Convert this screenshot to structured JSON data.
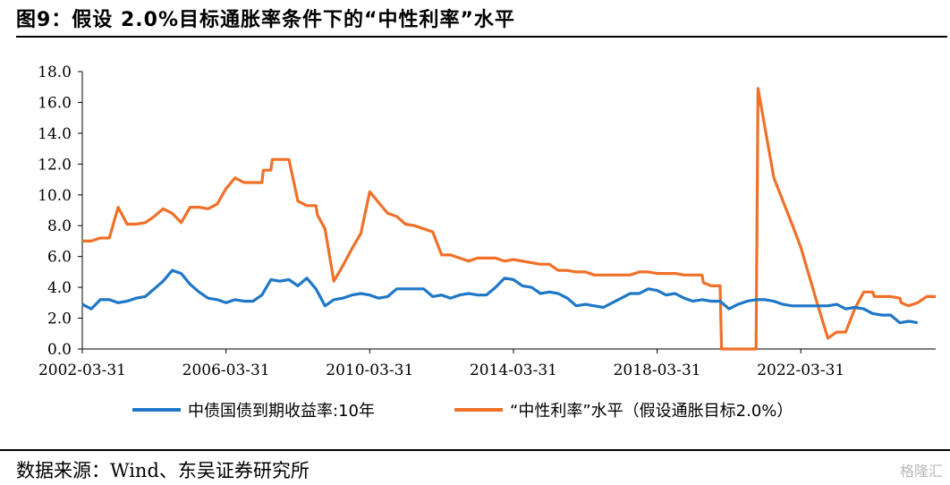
{
  "header": {
    "title": "图9：假设 2.0%目标通胀率条件下的“中性利率”水平"
  },
  "footer": {
    "source": "数据来源：Wind、东吴证券研究所",
    "watermark": "格隆汇"
  },
  "colors": {
    "series1": "#1f77c8",
    "series2": "#f07028"
  },
  "chart_data": {
    "type": "line",
    "title": "",
    "xlabel": "",
    "ylabel": "",
    "ylim": [
      0,
      18
    ],
    "xlim": [
      "2002-03-31",
      "2025-12-31"
    ],
    "grid": false,
    "legend_position": "bottom",
    "yticks": [
      "18.0",
      "16.0",
      "14.0",
      "12.0",
      "10.0",
      "8.0",
      "6.0",
      "4.0",
      "2.0",
      "0.0"
    ],
    "xticks": [
      "2002-03-31",
      "2006-03-31",
      "2010-03-31",
      "2014-03-31",
      "2018-03-31",
      "2022-03-31"
    ],
    "series": [
      {
        "name": "中债国债到期收益率:10年",
        "points": [
          [
            "2002-03-31",
            2.9
          ],
          [
            "2002-06-30",
            2.6
          ],
          [
            "2002-09-30",
            3.2
          ],
          [
            "2002-12-31",
            3.2
          ],
          [
            "2003-03-31",
            3.0
          ],
          [
            "2003-06-30",
            3.1
          ],
          [
            "2003-09-30",
            3.3
          ],
          [
            "2003-12-31",
            3.4
          ],
          [
            "2004-03-31",
            3.9
          ],
          [
            "2004-06-30",
            4.4
          ],
          [
            "2004-09-30",
            5.1
          ],
          [
            "2004-12-31",
            4.9
          ],
          [
            "2005-03-31",
            4.2
          ],
          [
            "2005-06-30",
            3.7
          ],
          [
            "2005-09-30",
            3.3
          ],
          [
            "2005-12-31",
            3.2
          ],
          [
            "2006-03-31",
            3.0
          ],
          [
            "2006-06-30",
            3.2
          ],
          [
            "2006-09-30",
            3.1
          ],
          [
            "2006-12-31",
            3.1
          ],
          [
            "2007-03-31",
            3.5
          ],
          [
            "2007-06-30",
            4.5
          ],
          [
            "2007-09-30",
            4.4
          ],
          [
            "2007-12-31",
            4.5
          ],
          [
            "2008-03-31",
            4.1
          ],
          [
            "2008-06-30",
            4.6
          ],
          [
            "2008-09-30",
            3.9
          ],
          [
            "2008-12-31",
            2.8
          ],
          [
            "2009-03-31",
            3.2
          ],
          [
            "2009-06-30",
            3.3
          ],
          [
            "2009-09-30",
            3.5
          ],
          [
            "2009-12-31",
            3.6
          ],
          [
            "2010-03-31",
            3.5
          ],
          [
            "2010-06-30",
            3.3
          ],
          [
            "2010-09-30",
            3.4
          ],
          [
            "2010-12-31",
            3.9
          ],
          [
            "2011-03-31",
            3.9
          ],
          [
            "2011-06-30",
            3.9
          ],
          [
            "2011-09-30",
            3.9
          ],
          [
            "2011-12-31",
            3.4
          ],
          [
            "2012-03-31",
            3.5
          ],
          [
            "2012-06-30",
            3.3
          ],
          [
            "2012-09-30",
            3.5
          ],
          [
            "2012-12-31",
            3.6
          ],
          [
            "2013-03-31",
            3.5
          ],
          [
            "2013-06-30",
            3.5
          ],
          [
            "2013-09-30",
            4.0
          ],
          [
            "2013-12-31",
            4.6
          ],
          [
            "2014-03-31",
            4.5
          ],
          [
            "2014-06-30",
            4.1
          ],
          [
            "2014-09-30",
            4.0
          ],
          [
            "2014-12-31",
            3.6
          ],
          [
            "2015-03-31",
            3.7
          ],
          [
            "2015-06-30",
            3.6
          ],
          [
            "2015-09-30",
            3.3
          ],
          [
            "2015-12-31",
            2.8
          ],
          [
            "2016-03-31",
            2.9
          ],
          [
            "2016-06-30",
            2.8
          ],
          [
            "2016-09-30",
            2.7
          ],
          [
            "2016-12-31",
            3.0
          ],
          [
            "2017-03-31",
            3.3
          ],
          [
            "2017-06-30",
            3.6
          ],
          [
            "2017-09-30",
            3.6
          ],
          [
            "2017-12-31",
            3.9
          ],
          [
            "2018-03-31",
            3.8
          ],
          [
            "2018-06-30",
            3.5
          ],
          [
            "2018-09-30",
            3.6
          ],
          [
            "2018-12-31",
            3.3
          ],
          [
            "2019-03-31",
            3.1
          ],
          [
            "2019-06-30",
            3.2
          ],
          [
            "2019-09-30",
            3.1
          ],
          [
            "2019-12-31",
            3.1
          ],
          [
            "2020-03-31",
            2.6
          ],
          [
            "2020-06-30",
            2.9
          ],
          [
            "2020-09-30",
            3.1
          ],
          [
            "2020-12-31",
            3.2
          ],
          [
            "2021-03-31",
            3.2
          ],
          [
            "2021-06-30",
            3.1
          ],
          [
            "2021-09-30",
            2.9
          ],
          [
            "2021-12-31",
            2.8
          ],
          [
            "2022-03-31",
            2.8
          ],
          [
            "2022-06-30",
            2.8
          ],
          [
            "2022-09-30",
            2.8
          ],
          [
            "2022-12-31",
            2.8
          ],
          [
            "2023-03-31",
            2.9
          ],
          [
            "2023-06-30",
            2.6
          ],
          [
            "2023-09-30",
            2.7
          ],
          [
            "2023-12-31",
            2.6
          ],
          [
            "2024-03-31",
            2.3
          ],
          [
            "2024-06-30",
            2.2
          ],
          [
            "2024-09-30",
            2.2
          ],
          [
            "2024-12-31",
            1.7
          ],
          [
            "2025-03-31",
            1.8
          ],
          [
            "2025-06-30",
            1.7
          ]
        ]
      },
      {
        "name": "“中性利率”水平（假设通胀目标2.0%）",
        "points": [
          [
            "2002-03-31",
            7.0
          ],
          [
            "2002-06-30",
            7.0
          ],
          [
            "2002-09-30",
            7.2
          ],
          [
            "2002-12-31",
            7.2
          ],
          [
            "2003-03-31",
            9.2
          ],
          [
            "2003-06-30",
            8.1
          ],
          [
            "2003-09-30",
            8.1
          ],
          [
            "2003-12-31",
            8.2
          ],
          [
            "2004-03-31",
            8.6
          ],
          [
            "2004-06-30",
            9.1
          ],
          [
            "2004-09-30",
            8.8
          ],
          [
            "2004-12-31",
            8.2
          ],
          [
            "2005-03-31",
            9.2
          ],
          [
            "2005-06-30",
            9.2
          ],
          [
            "2005-09-30",
            9.1
          ],
          [
            "2005-12-31",
            9.4
          ],
          [
            "2006-03-31",
            10.4
          ],
          [
            "2006-06-30",
            11.1
          ],
          [
            "2006-09-30",
            10.8
          ],
          [
            "2006-12-31",
            10.8
          ],
          [
            "2007-03-31",
            10.8
          ],
          [
            "2007-04-15",
            11.6
          ],
          [
            "2007-06-30",
            11.6
          ],
          [
            "2007-07-15",
            12.3
          ],
          [
            "2007-09-30",
            12.3
          ],
          [
            "2007-12-31",
            12.3
          ],
          [
            "2008-03-31",
            9.6
          ],
          [
            "2008-06-30",
            9.3
          ],
          [
            "2008-09-30",
            9.3
          ],
          [
            "2008-10-15",
            8.7
          ],
          [
            "2008-12-31",
            7.8
          ],
          [
            "2009-03-31",
            4.4
          ],
          [
            "2009-06-30",
            5.4
          ],
          [
            "2009-09-30",
            6.5
          ],
          [
            "2009-12-31",
            7.5
          ],
          [
            "2010-03-31",
            10.2
          ],
          [
            "2010-06-30",
            9.5
          ],
          [
            "2010-09-30",
            8.8
          ],
          [
            "2010-12-31",
            8.6
          ],
          [
            "2011-03-31",
            8.1
          ],
          [
            "2011-06-30",
            8.0
          ],
          [
            "2011-09-30",
            7.8
          ],
          [
            "2011-12-31",
            7.6
          ],
          [
            "2012-03-31",
            6.1
          ],
          [
            "2012-06-30",
            6.1
          ],
          [
            "2012-09-30",
            5.9
          ],
          [
            "2012-12-31",
            5.7
          ],
          [
            "2013-03-31",
            5.9
          ],
          [
            "2013-06-30",
            5.9
          ],
          [
            "2013-09-30",
            5.9
          ],
          [
            "2013-12-31",
            5.7
          ],
          [
            "2014-03-31",
            5.8
          ],
          [
            "2014-06-30",
            5.7
          ],
          [
            "2014-09-30",
            5.6
          ],
          [
            "2014-12-31",
            5.5
          ],
          [
            "2015-03-31",
            5.5
          ],
          [
            "2015-06-30",
            5.1
          ],
          [
            "2015-09-30",
            5.1
          ],
          [
            "2015-12-31",
            5.0
          ],
          [
            "2016-03-31",
            5.0
          ],
          [
            "2016-06-30",
            4.8
          ],
          [
            "2016-09-30",
            4.8
          ],
          [
            "2016-12-31",
            4.8
          ],
          [
            "2017-03-31",
            4.8
          ],
          [
            "2017-06-30",
            4.8
          ],
          [
            "2017-09-30",
            5.0
          ],
          [
            "2017-12-31",
            5.0
          ],
          [
            "2018-03-31",
            4.9
          ],
          [
            "2018-06-30",
            4.9
          ],
          [
            "2018-09-30",
            4.9
          ],
          [
            "2018-12-31",
            4.8
          ],
          [
            "2019-03-31",
            4.8
          ],
          [
            "2019-06-30",
            4.8
          ],
          [
            "2019-07-15",
            4.3
          ],
          [
            "2019-09-30",
            4.1
          ],
          [
            "2019-12-31",
            4.1
          ],
          [
            "2020-01-15",
            0.0
          ],
          [
            "2020-12-31",
            0.0
          ],
          [
            "2021-01-20",
            16.9
          ],
          [
            "2021-06-30",
            11.1
          ],
          [
            "2021-12-31",
            8.1
          ],
          [
            "2022-03-31",
            6.6
          ],
          [
            "2022-09-30",
            2.6
          ],
          [
            "2022-12-31",
            0.7
          ],
          [
            "2023-03-31",
            1.1
          ],
          [
            "2023-06-30",
            1.1
          ],
          [
            "2023-09-30",
            2.6
          ],
          [
            "2023-12-31",
            3.7
          ],
          [
            "2024-03-31",
            3.7
          ],
          [
            "2024-04-15",
            3.4
          ],
          [
            "2024-06-30",
            3.4
          ],
          [
            "2024-09-30",
            3.4
          ],
          [
            "2024-12-31",
            3.3
          ],
          [
            "2025-01-15",
            3.0
          ],
          [
            "2025-03-31",
            2.8
          ],
          [
            "2025-06-30",
            3.0
          ],
          [
            "2025-09-30",
            3.4
          ],
          [
            "2025-12-31",
            3.4
          ]
        ]
      }
    ]
  }
}
